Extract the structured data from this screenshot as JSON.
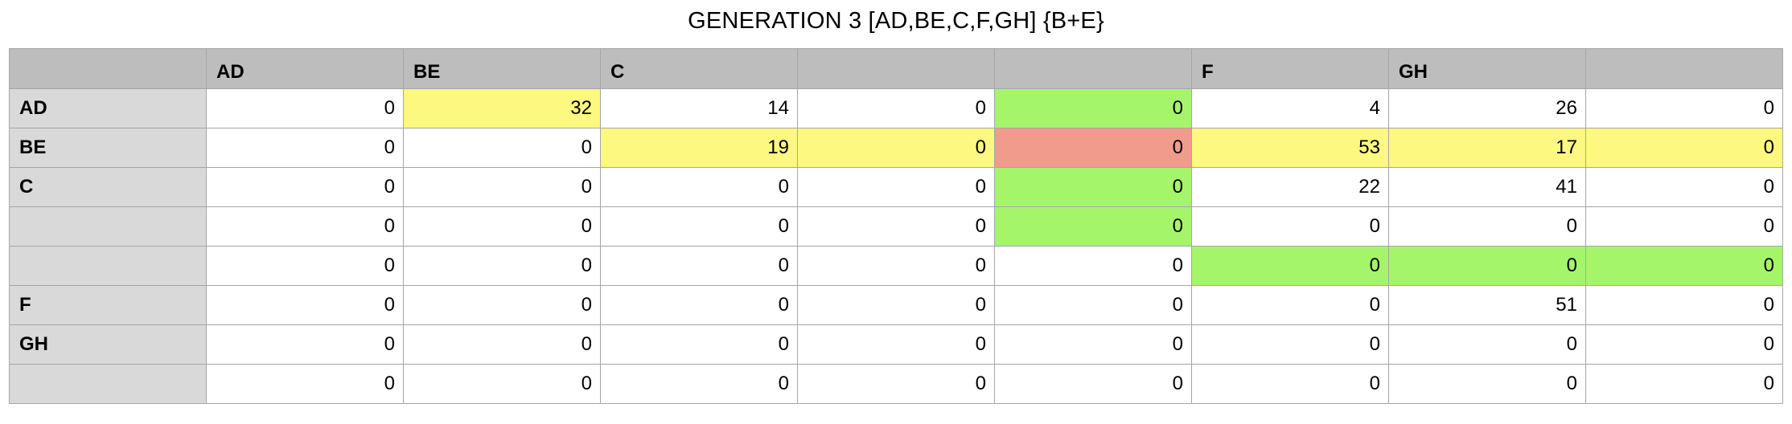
{
  "title": "GENERATION 3 [AD,BE,C,F,GH] {B+E}",
  "colors": {
    "header_bg": "#bdbdbd",
    "row_header_bg": "#d9d9d9",
    "yellow": "#fdf87f",
    "green": "#a5f56b",
    "red": "#f19b8d",
    "border": "#a6a6a6"
  },
  "columns": [
    "",
    "AD",
    "BE",
    "C",
    "",
    "",
    "F",
    "GH",
    ""
  ],
  "rows": [
    {
      "label": "AD",
      "values": [
        "0",
        "32",
        "14",
        "0",
        "0",
        "4",
        "26",
        "0"
      ],
      "fills": [
        "",
        "yellow",
        "",
        "",
        "green",
        "",
        "",
        ""
      ]
    },
    {
      "label": "BE",
      "values": [
        "0",
        "0",
        "19",
        "0",
        "0",
        "53",
        "17",
        "0"
      ],
      "fills": [
        "",
        "",
        "yellow",
        "yellow",
        "red",
        "yellow",
        "yellow",
        "yellow"
      ]
    },
    {
      "label": "C",
      "values": [
        "0",
        "0",
        "0",
        "0",
        "0",
        "22",
        "41",
        "0"
      ],
      "fills": [
        "",
        "",
        "",
        "",
        "green",
        "",
        "",
        ""
      ]
    },
    {
      "label": "",
      "values": [
        "0",
        "0",
        "0",
        "0",
        "0",
        "0",
        "0",
        "0"
      ],
      "fills": [
        "",
        "",
        "",
        "",
        "green",
        "",
        "",
        ""
      ]
    },
    {
      "label": "",
      "values": [
        "0",
        "0",
        "0",
        "0",
        "0",
        "0",
        "0",
        "0"
      ],
      "fills": [
        "",
        "",
        "",
        "",
        "",
        "green",
        "green",
        "green"
      ]
    },
    {
      "label": "F",
      "values": [
        "0",
        "0",
        "0",
        "0",
        "0",
        "0",
        "51",
        "0"
      ],
      "fills": [
        "",
        "",
        "",
        "",
        "",
        "",
        "",
        ""
      ]
    },
    {
      "label": "GH",
      "values": [
        "0",
        "0",
        "0",
        "0",
        "0",
        "0",
        "0",
        "0"
      ],
      "fills": [
        "",
        "",
        "",
        "",
        "",
        "",
        "",
        ""
      ]
    },
    {
      "label": "",
      "values": [
        "0",
        "0",
        "0",
        "0",
        "0",
        "0",
        "0",
        "0"
      ],
      "fills": [
        "",
        "",
        "",
        "",
        "",
        "",
        "",
        ""
      ]
    }
  ]
}
